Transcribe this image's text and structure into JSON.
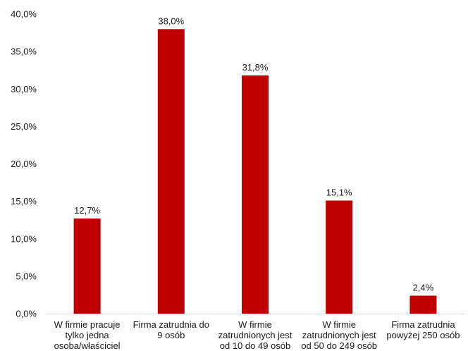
{
  "chart_data": {
    "type": "bar",
    "categories": [
      [
        "W firmie pracuje",
        "tylko jedna",
        "osoba/właściciel"
      ],
      [
        "Firma zatrudnia do",
        "9 osób"
      ],
      [
        "W firmie",
        "zatrudnionych jest",
        "od 10 do 49 osób"
      ],
      [
        "W firmie",
        "zatrudnionych jest",
        "od 50 do 249 osób"
      ],
      [
        "Firma zatrudnia",
        "powyżej 250 osób"
      ]
    ],
    "values": [
      12.7,
      38.0,
      31.8,
      15.1,
      2.4
    ],
    "data_labels": [
      "12,7%",
      "38,0%",
      "31,8%",
      "15,1%",
      "2,4%"
    ],
    "y_ticks": [
      "0,0%",
      "5,0%",
      "10,0%",
      "15,0%",
      "20,0%",
      "25,0%",
      "30,0%",
      "35,0%",
      "40,0%"
    ],
    "ylim": [
      0,
      40
    ],
    "grid": false,
    "bar_color": "#c00000",
    "title": "",
    "xlabel": "",
    "ylabel": ""
  }
}
